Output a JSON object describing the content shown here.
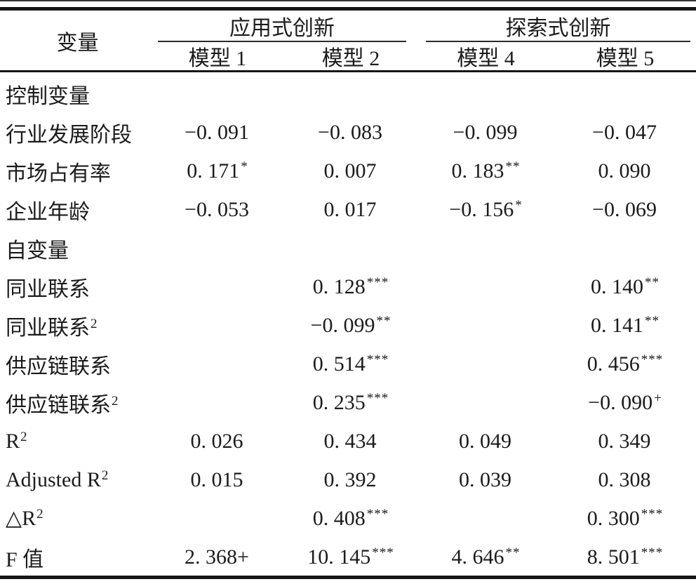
{
  "table": {
    "title_semantic": "regression-results",
    "header": {
      "variable": "变量",
      "groups": [
        {
          "label": "应用式创新",
          "models": [
            "模型 1",
            "模型 2"
          ]
        },
        {
          "label": "探索式创新",
          "models": [
            "模型 4",
            "模型 5"
          ]
        }
      ]
    },
    "rows": [
      {
        "label": "控制变量",
        "sup": "",
        "cells": [
          {
            "v": "",
            "s": ""
          },
          {
            "v": "",
            "s": ""
          },
          {
            "v": "",
            "s": ""
          },
          {
            "v": "",
            "s": ""
          }
        ]
      },
      {
        "label": "行业发展阶段",
        "sup": "",
        "cells": [
          {
            "v": "−0. 091",
            "s": ""
          },
          {
            "v": "−0. 083",
            "s": ""
          },
          {
            "v": "−0. 099",
            "s": ""
          },
          {
            "v": "−0. 047",
            "s": ""
          }
        ]
      },
      {
        "label": "市场占有率",
        "sup": "",
        "cells": [
          {
            "v": "0. 171",
            "s": "*"
          },
          {
            "v": "0. 007",
            "s": ""
          },
          {
            "v": "0. 183",
            "s": "**"
          },
          {
            "v": "0. 090",
            "s": ""
          }
        ]
      },
      {
        "label": "企业年龄",
        "sup": "",
        "cells": [
          {
            "v": "−0. 053",
            "s": ""
          },
          {
            "v": "0. 017",
            "s": ""
          },
          {
            "v": "−0. 156",
            "s": "*"
          },
          {
            "v": "−0. 069",
            "s": ""
          }
        ]
      },
      {
        "label": "自变量",
        "sup": "",
        "cells": [
          {
            "v": "",
            "s": ""
          },
          {
            "v": "",
            "s": ""
          },
          {
            "v": "",
            "s": ""
          },
          {
            "v": "",
            "s": ""
          }
        ]
      },
      {
        "label": "同业联系",
        "sup": "",
        "cells": [
          {
            "v": "",
            "s": ""
          },
          {
            "v": "0. 128",
            "s": "***"
          },
          {
            "v": "",
            "s": ""
          },
          {
            "v": "0. 140",
            "s": "**"
          }
        ]
      },
      {
        "label": "同业联系",
        "sup": "2",
        "cells": [
          {
            "v": "",
            "s": ""
          },
          {
            "v": "−0. 099",
            "s": "**"
          },
          {
            "v": "",
            "s": ""
          },
          {
            "v": "0. 141",
            "s": "**"
          }
        ]
      },
      {
        "label": "供应链联系",
        "sup": "",
        "cells": [
          {
            "v": "",
            "s": ""
          },
          {
            "v": "0. 514",
            "s": "***"
          },
          {
            "v": "",
            "s": ""
          },
          {
            "v": "0. 456",
            "s": "***"
          }
        ]
      },
      {
        "label": "供应链联系",
        "sup": "2",
        "cells": [
          {
            "v": "",
            "s": ""
          },
          {
            "v": "0. 235",
            "s": "***"
          },
          {
            "v": "",
            "s": ""
          },
          {
            "v": "−0. 090",
            "s": "+"
          }
        ]
      },
      {
        "label": "R",
        "sup": "2",
        "cells": [
          {
            "v": "0. 026",
            "s": ""
          },
          {
            "v": "0. 434",
            "s": ""
          },
          {
            "v": "0. 049",
            "s": ""
          },
          {
            "v": "0. 349",
            "s": ""
          }
        ]
      },
      {
        "label": "Adjusted R",
        "sup": "2",
        "cells": [
          {
            "v": "0. 015",
            "s": ""
          },
          {
            "v": "0. 392",
            "s": ""
          },
          {
            "v": "0. 039",
            "s": ""
          },
          {
            "v": "0. 308",
            "s": ""
          }
        ]
      },
      {
        "label": "△R",
        "sup": "2",
        "cells": [
          {
            "v": "",
            "s": ""
          },
          {
            "v": "0. 408",
            "s": "***"
          },
          {
            "v": "",
            "s": ""
          },
          {
            "v": "0. 300",
            "s": "***"
          }
        ]
      },
      {
        "label": "F 值",
        "sup": "",
        "cells": [
          {
            "v": "2. 368+",
            "s": ""
          },
          {
            "v": "10. 145",
            "s": "***"
          },
          {
            "v": "4. 646",
            "s": "**"
          },
          {
            "v": "8. 501",
            "s": "***"
          }
        ]
      }
    ]
  }
}
